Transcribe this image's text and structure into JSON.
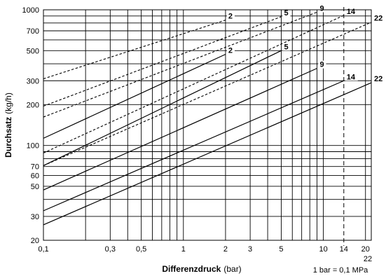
{
  "chart_data": {
    "type": "line",
    "x_scale": "log",
    "y_scale": "log",
    "xlim": [
      0.1,
      22
    ],
    "ylim": [
      20,
      1000
    ],
    "grid": true,
    "xlabel_bold": "Differenzdruck",
    "xlabel_unit": "(bar)",
    "ylabel_bold": "Durchsatz",
    "ylabel_unit": "(kg/h)",
    "note": "1 bar = 0,1 MPa",
    "x_ticks": [
      {
        "value": 0.1,
        "label": "0,1"
      },
      {
        "value": 0.3,
        "label": "0,3"
      },
      {
        "value": 0.5,
        "label": "0,5"
      },
      {
        "value": 1,
        "label": "1"
      },
      {
        "value": 2,
        "label": "2"
      },
      {
        "value": 3,
        "label": "3"
      },
      {
        "value": 5,
        "label": "5"
      },
      {
        "value": 10,
        "label": "10"
      },
      {
        "value": 14,
        "label": "14"
      },
      {
        "value": 20,
        "label": "20"
      },
      {
        "value": 22,
        "label": "22"
      }
    ],
    "y_ticks": [
      {
        "value": 20,
        "label": "20"
      },
      {
        "value": 30,
        "label": "30"
      },
      {
        "value": 50,
        "label": "50"
      },
      {
        "value": 60,
        "label": "60"
      },
      {
        "value": 70,
        "label": "70"
      },
      {
        "value": 100,
        "label": "100"
      },
      {
        "value": 200,
        "label": "200"
      },
      {
        "value": 300,
        "label": "300"
      },
      {
        "value": 500,
        "label": "500"
      },
      {
        "value": 700,
        "label": "700"
      },
      {
        "value": 1000,
        "label": "1000"
      }
    ],
    "vertical_marker": {
      "x": 14,
      "style": "dashed"
    },
    "series": [
      {
        "name": "2",
        "style": "dashed",
        "x": [
          0.1,
          2
        ],
        "y": [
          310,
          840
        ]
      },
      {
        "name": "5",
        "style": "dashed",
        "x": [
          0.1,
          5
        ],
        "y": [
          195,
          890
        ]
      },
      {
        "name": "9",
        "style": "dashed",
        "x": [
          0.1,
          9
        ],
        "y": [
          162,
          960
        ]
      },
      {
        "name": "14",
        "style": "dashed",
        "x": [
          0.1,
          14
        ],
        "y": [
          88,
          910
        ]
      },
      {
        "name": "22",
        "style": "dashed",
        "x": [
          0.1,
          22
        ],
        "y": [
          71,
          810
        ]
      },
      {
        "name": "2",
        "style": "solid",
        "x": [
          0.1,
          2
        ],
        "y": [
          113,
          470
        ]
      },
      {
        "name": "5",
        "style": "solid",
        "x": [
          0.1,
          5
        ],
        "y": [
          71,
          500
        ]
      },
      {
        "name": "9",
        "style": "solid",
        "x": [
          0.1,
          9
        ],
        "y": [
          47,
          370
        ]
      },
      {
        "name": "14",
        "style": "solid",
        "x": [
          0.1,
          14
        ],
        "y": [
          33,
          300
        ]
      },
      {
        "name": "22",
        "style": "solid",
        "x": [
          0.1,
          22
        ],
        "y": [
          26,
          290
        ]
      }
    ]
  }
}
